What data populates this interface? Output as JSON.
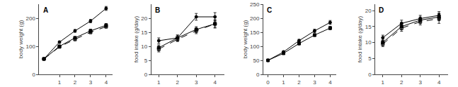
{
  "chart_data": [
    {
      "type": "line",
      "title": "A",
      "ylabel": "body weight (g)",
      "xlim": [
        -0.3,
        4.4
      ],
      "ylim": [
        0,
        250
      ],
      "xticks": [
        1,
        2,
        3,
        4
      ],
      "yticks": [
        0,
        100,
        200
      ],
      "grid": false,
      "series": [
        {
          "x": [
            0,
            1,
            2,
            3,
            4
          ],
          "values": [
            55,
            115,
            155,
            190,
            235
          ],
          "yerr": [
            2,
            4,
            5,
            6,
            7
          ],
          "line_style": "solid",
          "marker": "circle",
          "color": "black"
        },
        {
          "x": [
            0,
            1,
            2,
            3,
            4
          ],
          "values": [
            55,
            100,
            130,
            155,
            175
          ],
          "yerr": [
            2,
            4,
            5,
            6,
            6
          ],
          "line_style": "solid",
          "marker": "square",
          "color": "black"
        },
        {
          "x": [
            0,
            1,
            2,
            3,
            4
          ],
          "values": [
            55,
            98,
            125,
            150,
            170
          ],
          "yerr": [
            2,
            3,
            5,
            5,
            5
          ],
          "line_style": "dashed",
          "marker": "square-open",
          "color": "black"
        }
      ]
    },
    {
      "type": "line",
      "title": "B",
      "ylabel": "food intake (g/day)",
      "xlim": [
        0.6,
        4.5
      ],
      "ylim": [
        0,
        25
      ],
      "xticks": [
        1,
        2,
        3,
        4
      ],
      "yticks": [
        0,
        5,
        10,
        15,
        20
      ],
      "grid": false,
      "series": [
        {
          "x": [
            1,
            2,
            3,
            4
          ],
          "values": [
            12,
            13,
            20.5,
            20.5
          ],
          "yerr": [
            1.0,
            1.0,
            1.2,
            1.5
          ],
          "line_style": "solid",
          "marker": "circle",
          "color": "black"
        },
        {
          "x": [
            1,
            2,
            3,
            4
          ],
          "values": [
            9.5,
            13,
            16,
            18
          ],
          "yerr": [
            1.0,
            1.0,
            1.0,
            1.2
          ],
          "line_style": "solid",
          "marker": "square",
          "color": "black"
        },
        {
          "x": [
            1,
            2,
            3,
            4
          ],
          "values": [
            9,
            12.5,
            15.5,
            18
          ],
          "yerr": [
            1.0,
            0.8,
            1.0,
            1.5
          ],
          "line_style": "dashed",
          "marker": "square-open",
          "color": "black"
        }
      ]
    },
    {
      "type": "line",
      "title": "C",
      "ylabel": "body weight (g)",
      "xlim": [
        -0.3,
        4.4
      ],
      "ylim": [
        0,
        250
      ],
      "xticks": [
        0,
        1,
        2,
        3,
        4
      ],
      "yticks": [
        0,
        50,
        100,
        150,
        200,
        250
      ],
      "grid": false,
      "series": [
        {
          "x": [
            0,
            1,
            2,
            3,
            4
          ],
          "values": [
            50,
            80,
            120,
            155,
            185
          ],
          "yerr": [
            2,
            4,
            5,
            6,
            7
          ],
          "line_style": "solid",
          "marker": "circle",
          "color": "black"
        },
        {
          "x": [
            0,
            1,
            2,
            3,
            4
          ],
          "values": [
            50,
            75,
            110,
            140,
            165
          ],
          "yerr": [
            2,
            3,
            5,
            5,
            6
          ],
          "line_style": "solid",
          "marker": "square",
          "color": "black"
        }
      ]
    },
    {
      "type": "line",
      "title": "D",
      "ylabel": "food intake (g/day)",
      "xlim": [
        0.6,
        4.5
      ],
      "ylim": [
        0,
        22
      ],
      "xticks": [
        1,
        2,
        3,
        4
      ],
      "yticks": [
        0,
        5,
        10,
        15,
        20
      ],
      "grid": false,
      "series": [
        {
          "x": [
            1,
            2,
            3,
            4
          ],
          "values": [
            11.5,
            16,
            17.5,
            18.5
          ],
          "yerr": [
            0.8,
            1.0,
            1.0,
            1.2
          ],
          "line_style": "solid",
          "marker": "circle",
          "color": "black"
        },
        {
          "x": [
            1,
            2,
            3,
            4
          ],
          "values": [
            10,
            15,
            17,
            18
          ],
          "yerr": [
            0.8,
            1.0,
            1.0,
            1.2
          ],
          "line_style": "solid",
          "marker": "square",
          "color": "black"
        },
        {
          "x": [
            1,
            2,
            3,
            4
          ],
          "values": [
            9.5,
            14.5,
            16.5,
            17.5
          ],
          "yerr": [
            0.8,
            1.0,
            1.0,
            1.5
          ],
          "line_style": "dashed",
          "marker": "square-open",
          "color": "black"
        }
      ]
    }
  ]
}
